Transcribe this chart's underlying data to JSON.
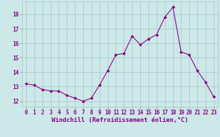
{
  "x": [
    0,
    1,
    2,
    3,
    4,
    5,
    6,
    7,
    8,
    9,
    10,
    11,
    12,
    13,
    14,
    15,
    16,
    17,
    18,
    19,
    20,
    21,
    22,
    23
  ],
  "y": [
    13.2,
    13.1,
    12.8,
    12.7,
    12.7,
    12.4,
    12.2,
    12.0,
    12.2,
    13.1,
    14.1,
    15.2,
    15.3,
    16.5,
    15.9,
    16.3,
    16.6,
    17.8,
    18.5,
    15.4,
    15.2,
    14.1,
    13.3,
    12.3
  ],
  "line_color": "#880088",
  "marker": "D",
  "marker_size": 2.0,
  "background_color": "#cce8e8",
  "grid_color": "#aacaca",
  "xlabel": "Windchill (Refroidissement éolien,°C)",
  "xlim": [
    -0.5,
    23.5
  ],
  "ylim": [
    11.6,
    18.9
  ],
  "yticks": [
    12,
    13,
    14,
    15,
    16,
    17,
    18
  ],
  "xticks": [
    0,
    1,
    2,
    3,
    4,
    5,
    6,
    7,
    8,
    9,
    10,
    11,
    12,
    13,
    14,
    15,
    16,
    17,
    18,
    19,
    20,
    21,
    22,
    23
  ],
  "tick_fontsize": 5.5,
  "label_fontsize": 6.5
}
